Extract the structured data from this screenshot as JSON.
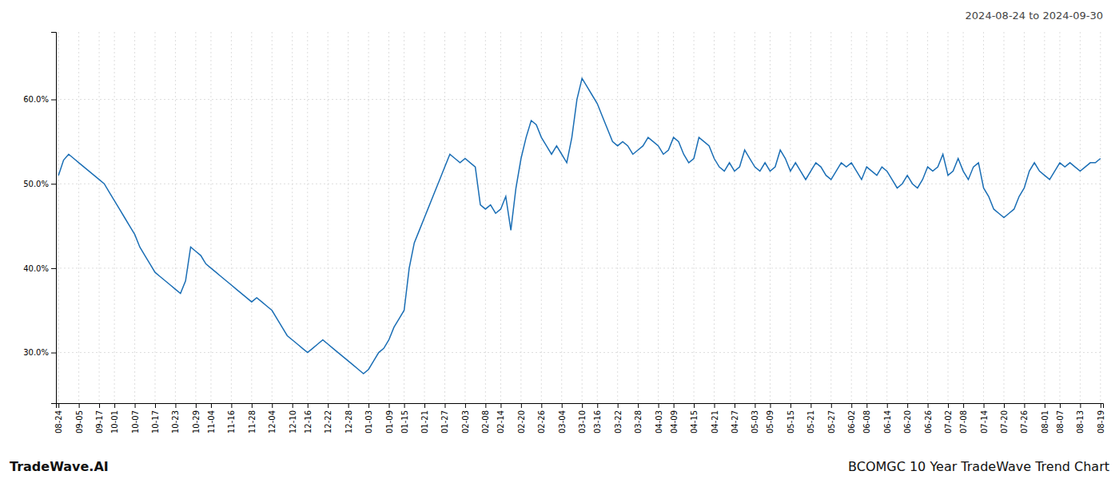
{
  "chart_data": {
    "type": "line",
    "title": "BCOMGC 10 Year TradeWave Trend Chart",
    "subtitle": "2024-08-24 to 2024-09-30",
    "annotations": [
      {
        "text": "TradeWave.AI"
      }
    ],
    "color": "#1a6eb5",
    "grid": true,
    "ylim": [
      24,
      68
    ],
    "yticks": [
      {
        "value": 30,
        "label": "30.0%"
      },
      {
        "value": 40,
        "label": "40.0%"
      },
      {
        "value": 50,
        "label": "50.0%"
      },
      {
        "value": 60,
        "label": "60.0%"
      }
    ],
    "categories": [
      "08-24",
      null,
      null,
      null,
      "09-05",
      null,
      null,
      null,
      "09-17",
      null,
      null,
      "10-01",
      null,
      null,
      null,
      "10-07",
      null,
      null,
      null,
      "10-17",
      null,
      null,
      null,
      "10-23",
      null,
      null,
      null,
      "10-29",
      null,
      null,
      "11-04",
      null,
      null,
      null,
      "11-16",
      null,
      null,
      null,
      "11-28",
      null,
      null,
      null,
      "12-04",
      null,
      null,
      null,
      "12-10",
      null,
      null,
      "12-16",
      null,
      null,
      null,
      "12-22",
      null,
      null,
      null,
      "12-28",
      null,
      null,
      null,
      "01-03",
      null,
      null,
      null,
      "01-09",
      null,
      null,
      "01-15",
      null,
      null,
      null,
      "01-21",
      null,
      null,
      null,
      "01-27",
      null,
      null,
      null,
      "02-03",
      null,
      null,
      null,
      "02-08",
      null,
      null,
      "02-14",
      null,
      null,
      null,
      "02-20",
      null,
      null,
      null,
      "02-26",
      null,
      null,
      null,
      "03-04",
      null,
      null,
      null,
      "03-10",
      null,
      null,
      "03-16",
      null,
      null,
      null,
      "03-22",
      null,
      null,
      null,
      "03-28",
      null,
      null,
      null,
      "04-03",
      null,
      null,
      "04-09",
      null,
      null,
      null,
      "04-15",
      null,
      null,
      null,
      "04-21",
      null,
      null,
      null,
      "04-27",
      null,
      null,
      null,
      "05-03",
      null,
      null,
      "05-09",
      null,
      null,
      null,
      "05-15",
      null,
      null,
      null,
      "05-21",
      null,
      null,
      null,
      "05-27",
      null,
      null,
      null,
      "06-02",
      null,
      null,
      "06-08",
      null,
      null,
      null,
      "06-14",
      null,
      null,
      null,
      "06-20",
      null,
      null,
      null,
      "06-26",
      null,
      null,
      null,
      "07-02",
      null,
      null,
      "07-08",
      null,
      null,
      null,
      "07-14",
      null,
      null,
      null,
      "07-20",
      null,
      null,
      null,
      "07-26",
      null,
      null,
      null,
      "08-01",
      null,
      null,
      "08-07",
      null,
      null,
      null,
      "08-13",
      null,
      null,
      null,
      "08-19"
    ],
    "values": [
      51.0,
      52.8,
      53.5,
      53.0,
      52.5,
      52.0,
      51.5,
      51.0,
      50.5,
      50.0,
      49.0,
      48.0,
      47.0,
      46.0,
      45.0,
      44.0,
      42.5,
      41.5,
      40.5,
      39.5,
      39.0,
      38.5,
      38.0,
      37.5,
      37.0,
      38.5,
      42.5,
      42.0,
      41.5,
      40.5,
      40.0,
      39.5,
      39.0,
      38.5,
      38.0,
      37.5,
      37.0,
      36.5,
      36.0,
      36.5,
      36.0,
      35.5,
      35.0,
      34.0,
      33.0,
      32.0,
      31.5,
      31.0,
      30.5,
      30.0,
      30.5,
      31.0,
      31.5,
      31.0,
      30.5,
      30.0,
      29.5,
      29.0,
      28.5,
      28.0,
      27.5,
      28.0,
      29.0,
      30.0,
      30.5,
      31.5,
      33.0,
      34.0,
      35.0,
      40.0,
      43.0,
      44.5,
      46.0,
      47.5,
      49.0,
      50.5,
      52.0,
      53.5,
      53.0,
      52.5,
      53.0,
      52.5,
      52.0,
      47.5,
      47.0,
      47.5,
      46.5,
      47.0,
      48.5,
      44.5,
      49.5,
      53.0,
      55.5,
      57.5,
      57.0,
      55.5,
      54.5,
      53.5,
      54.5,
      53.5,
      52.5,
      55.5,
      60.0,
      62.5,
      61.5,
      60.5,
      59.5,
      58.0,
      56.5,
      55.0,
      54.5,
      55.0,
      54.5,
      53.5,
      54.0,
      54.5,
      55.5,
      55.0,
      54.5,
      53.5,
      54.0,
      55.5,
      55.0,
      53.5,
      52.5,
      53.0,
      55.5,
      55.0,
      54.5,
      53.0,
      52.0,
      51.5,
      52.5,
      51.5,
      52.0,
      54.0,
      53.0,
      52.0,
      51.5,
      52.5,
      51.5,
      52.0,
      54.0,
      53.0,
      51.5,
      52.5,
      51.5,
      50.5,
      51.5,
      52.5,
      52.0,
      51.0,
      50.5,
      51.5,
      52.5,
      52.0,
      52.5,
      51.5,
      50.5,
      52.0,
      51.5,
      51.0,
      52.0,
      51.5,
      50.5,
      49.5,
      50.0,
      51.0,
      50.0,
      49.5,
      50.5,
      52.0,
      51.5,
      52.0,
      53.5,
      51.0,
      51.5,
      53.0,
      51.5,
      50.5,
      52.0,
      52.5,
      49.5,
      48.5,
      47.0,
      46.5,
      46.0,
      46.5,
      47.0,
      48.5,
      49.5,
      51.5,
      52.5,
      51.5,
      51.0,
      50.5,
      51.5,
      52.5,
      52.0,
      52.5,
      52.0,
      51.5,
      52.0,
      52.5,
      52.5,
      53.0
    ]
  }
}
